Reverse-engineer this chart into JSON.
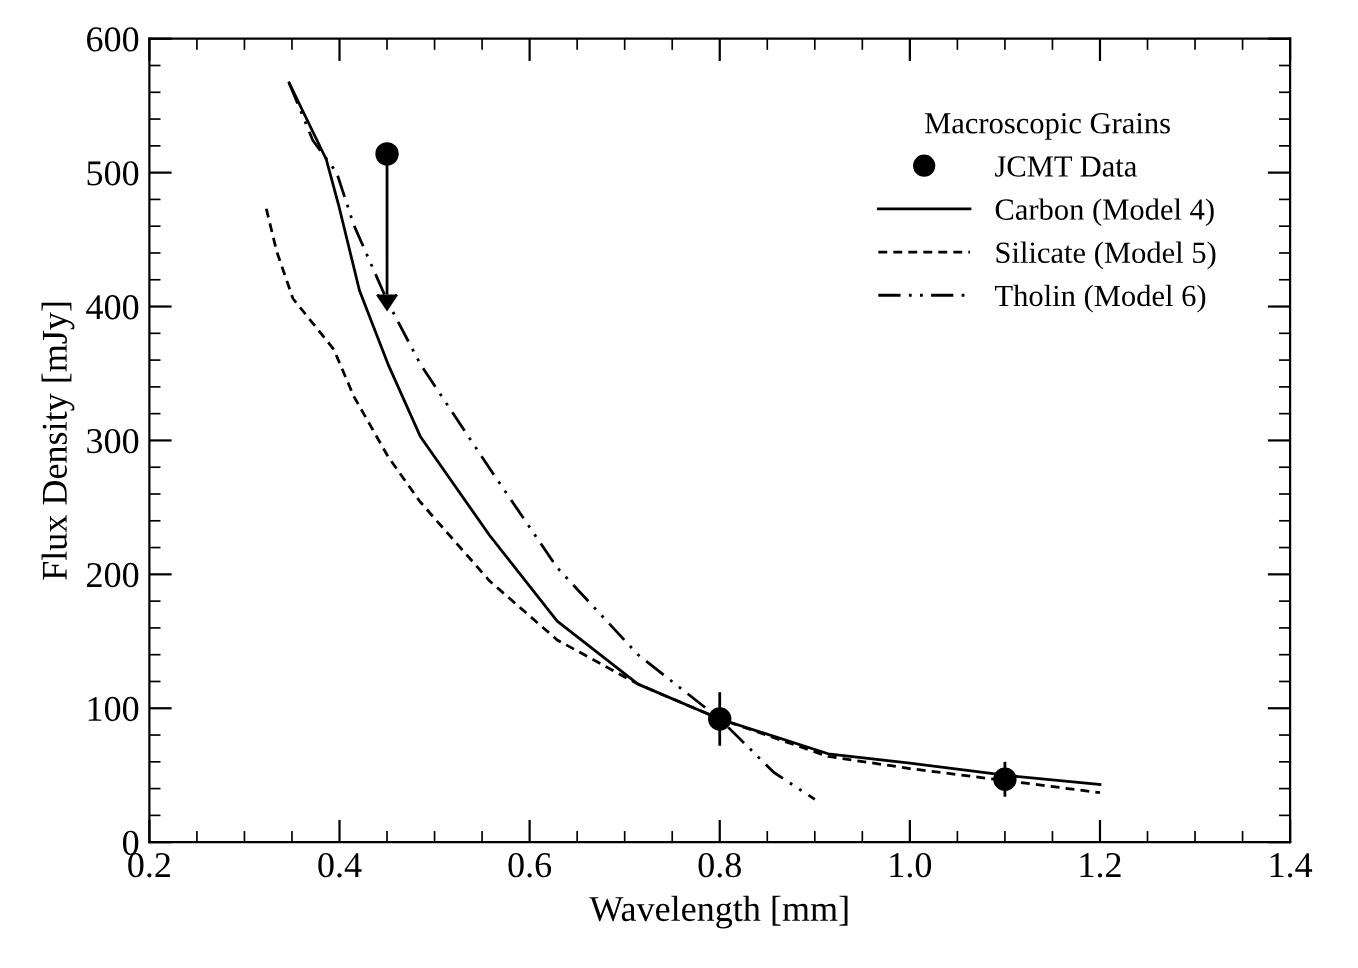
{
  "chart_data": {
    "type": "line",
    "xlabel": "Wavelength [mm]",
    "ylabel": "Flux Density [mJy]",
    "legend_title": "Macroscopic Grains",
    "legend": "top right",
    "xlim": [
      0.2,
      1.4
    ],
    "ylim": [
      0,
      600
    ],
    "xticks": [
      0.2,
      0.4,
      0.6,
      0.8,
      {
        "value": 1.0,
        "label": "1.0"
      },
      1.2,
      1.4
    ],
    "yticks": [
      0,
      100,
      200,
      300,
      400,
      500,
      600
    ],
    "series": [
      {
        "name": "JCMT Data",
        "type": "scatter",
        "marker": "circle",
        "color": "#000000",
        "x": [
          0.45,
          0.8,
          1.1
        ],
        "values": [
          514,
          92,
          47
        ],
        "errors": [
          [
            409,
            514
          ],
          20,
          13
        ]
      },
      {
        "name": "Carbon (Model 4)",
        "line_style": "solid",
        "color": "#000000",
        "x": [
          0.347,
          0.386,
          0.399,
          0.421,
          0.451,
          0.485,
          0.558,
          0.629,
          0.714,
          0.8,
          0.914,
          1.0,
          1.1,
          1.2
        ],
        "values": [
          567,
          510,
          476,
          412,
          357,
          303,
          229,
          165,
          118,
          92,
          66,
          59,
          50,
          43
        ]
      },
      {
        "name": "Silicate (Model 5)",
        "line_style": "dashed",
        "color": "#000000",
        "x": [
          0.323,
          0.334,
          0.351,
          0.394,
          0.415,
          0.451,
          0.485,
          0.558,
          0.629,
          0.714,
          0.8,
          0.914,
          1.0,
          1.1,
          1.2
        ],
        "values": [
          473,
          441,
          406,
          368,
          333,
          288,
          254,
          195,
          151,
          118,
          92,
          64,
          55,
          46,
          37
        ]
      },
      {
        "name": "Tholin (Model 6)",
        "line_style": "dashdotdot",
        "color": "#000000",
        "x": [
          0.347,
          0.372,
          0.397,
          0.415,
          0.451,
          0.485,
          0.558,
          0.629,
          0.714,
          0.8,
          0.857,
          0.9
        ],
        "values": [
          567,
          524,
          500,
          461,
          403,
          357,
          279,
          205,
          140,
          92,
          52,
          32
        ]
      }
    ]
  }
}
